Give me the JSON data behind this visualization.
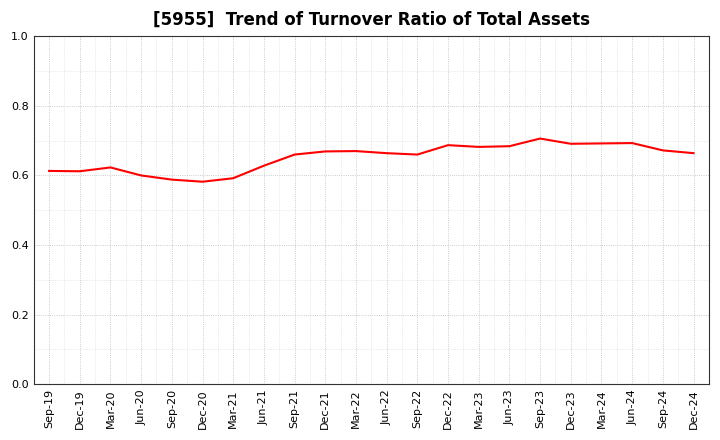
{
  "title": "[5955]  Trend of Turnover Ratio of Total Assets",
  "x_labels": [
    "Sep-19",
    "Dec-19",
    "Mar-20",
    "Jun-20",
    "Sep-20",
    "Dec-20",
    "Mar-21",
    "Jun-21",
    "Sep-21",
    "Dec-21",
    "Mar-22",
    "Jun-22",
    "Sep-22",
    "Dec-22",
    "Mar-23",
    "Jun-23",
    "Sep-23",
    "Dec-23",
    "Mar-24",
    "Jun-24",
    "Sep-24",
    "Dec-24"
  ],
  "values": [
    0.613,
    0.612,
    0.623,
    0.6,
    0.588,
    0.582,
    0.592,
    0.628,
    0.66,
    0.669,
    0.67,
    0.664,
    0.66,
    0.687,
    0.682,
    0.684,
    0.706,
    0.691,
    0.692,
    0.693,
    0.672,
    0.664
  ],
  "line_color": "#ff0000",
  "line_width": 1.5,
  "background_color": "#ffffff",
  "plot_bg_color": "#ffffff",
  "grid_color": "#aaaaaa",
  "ylim": [
    0.0,
    1.0
  ],
  "yticks": [
    0.0,
    0.2,
    0.4,
    0.6,
    0.8,
    1.0
  ],
  "title_fontsize": 12,
  "tick_fontsize": 8,
  "spine_color": "#333333"
}
